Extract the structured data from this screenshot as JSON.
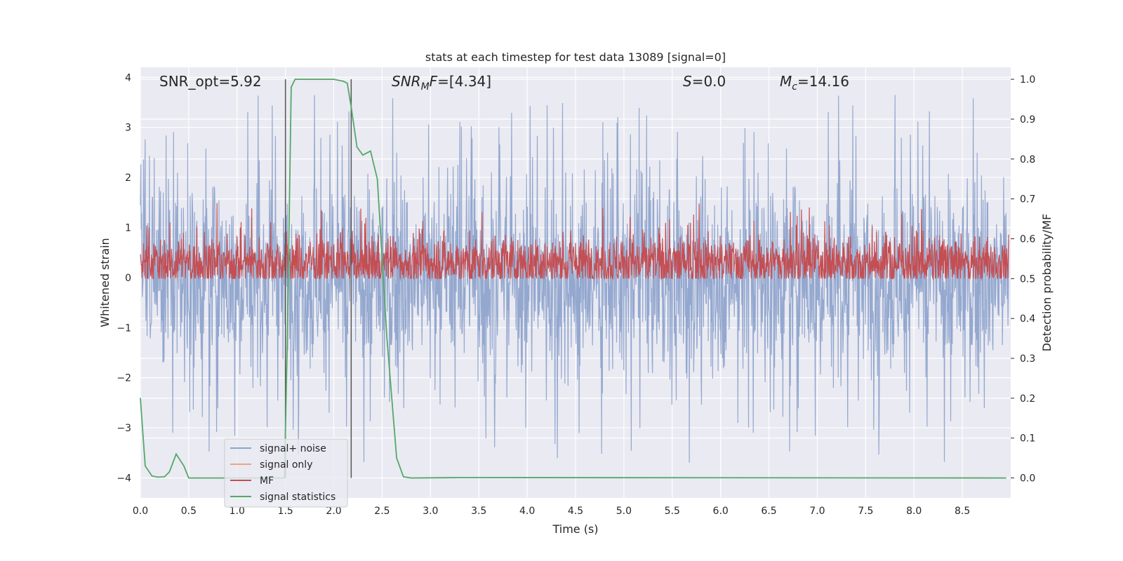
{
  "chart_data": {
    "type": "line",
    "title": "stats at each timestep for test data 13089 [signal=0]",
    "xlabel": "Time (s)",
    "ylabel_left": "Whitened strain",
    "ylabel_right": "Detection probability/MF",
    "xlim": [
      0.0,
      9.0
    ],
    "ylim_left": [
      -4.4,
      4.2
    ],
    "ylim_right": [
      -0.05,
      1.03
    ],
    "x_ticks": [
      "0.0",
      "0.5",
      "1.0",
      "1.5",
      "2.0",
      "2.5",
      "3.0",
      "3.5",
      "4.0",
      "4.5",
      "5.0",
      "5.5",
      "6.0",
      "6.5",
      "7.0",
      "7.5",
      "8.0",
      "8.5"
    ],
    "y_ticks_left": [
      "4",
      "3",
      "2",
      "1",
      "0",
      "−1",
      "−2",
      "−3",
      "−4"
    ],
    "y_ticks_right": [
      "1.0",
      "0.9",
      "0.8",
      "0.7",
      "0.6",
      "0.5",
      "0.4",
      "0.3",
      "0.2",
      "0.1",
      "0.0"
    ],
    "annotations": {
      "snr_opt": "SNR_opt=5.92",
      "snr_mf": "=[4.34]",
      "s_value": "=0.0",
      "mc_value": "=14.16"
    },
    "vlines": [
      1.5,
      2.18
    ],
    "colors": {
      "noise": "#8fa4cc",
      "signal": "#e8a48c",
      "mf": "#c44e52",
      "stat": "#55a868",
      "vline": "#555555",
      "bg": "#eaeaf2",
      "grid": "#ffffff"
    },
    "series": [
      {
        "name": "signal+ noise",
        "style": "noise band (approx. ±1.3 with spikes to ±3.8)"
      },
      {
        "name": "signal only",
        "style": "flat (signal=0)"
      },
      {
        "name": "MF",
        "style": "band approx. 0 to 0.6, spikes to 1.0"
      },
      {
        "name": "signal statistics",
        "x": [
          0.0,
          0.05,
          0.12,
          0.18,
          0.25,
          0.3,
          0.37,
          0.45,
          0.5,
          0.6,
          1.0,
          1.4,
          1.49,
          1.52,
          1.56,
          1.6,
          1.8,
          2.0,
          2.1,
          2.14,
          2.18,
          2.24,
          2.3,
          2.38,
          2.45,
          2.55,
          2.65,
          2.72,
          2.8,
          3.3,
          8.95
        ],
        "values": [
          0.2,
          0.03,
          0.005,
          0.002,
          0.003,
          0.015,
          0.06,
          0.03,
          0.0,
          0.0,
          0.0,
          0.0,
          0.0,
          0.35,
          0.98,
          1.0,
          1.0,
          1.0,
          0.995,
          0.99,
          0.93,
          0.83,
          0.81,
          0.82,
          0.75,
          0.35,
          0.05,
          0.003,
          0.0,
          0.001,
          0.0
        ]
      }
    ],
    "legend": {
      "position": "lower-left",
      "entries": [
        "signal+ noise",
        "signal only",
        "MF",
        "signal statistics"
      ]
    }
  }
}
